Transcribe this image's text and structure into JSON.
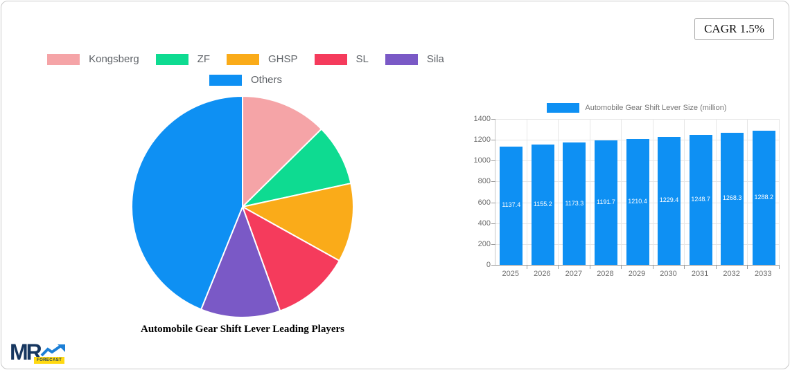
{
  "page": {
    "cagr_label": "CAGR 1.5%"
  },
  "logo": {
    "mr": "MR",
    "forecast_badge": "FORECAST",
    "arrow_color": "#1c7fd6",
    "navy": "#16365f",
    "yellow": "#ffd912"
  },
  "chart_data": [
    {
      "type": "pie",
      "title": "Automobile Gear Shift Lever Leading Players",
      "labels": [
        "Kongsberg",
        "ZF",
        "GHSP",
        "SL",
        "Sila",
        "Others"
      ],
      "values": [
        12.6,
        9.0,
        11.5,
        11.4,
        11.6,
        43.9
      ],
      "colors": [
        "#f5a4a7",
        "#0edb91",
        "#faab19",
        "#f53b5c",
        "#7a59c6",
        "#0e90f3"
      ],
      "start_angle_deg": 0,
      "direction": "clockwise",
      "legend_position": "top",
      "slice_border_color": "#ffffff"
    },
    {
      "type": "bar",
      "legend_label": "Automobile Gear Shift Lever Size (million)",
      "categories": [
        "2025",
        "2026",
        "2027",
        "2028",
        "2029",
        "2030",
        "2031",
        "2032",
        "2033"
      ],
      "values": [
        1137.4,
        1155.2,
        1173.3,
        1191.7,
        1210.4,
        1229.4,
        1248.7,
        1268.3,
        1288.2
      ],
      "bar_color": "#0e90f3",
      "ylim": [
        0,
        1400
      ],
      "ytick_step": 200,
      "grid": true,
      "value_label_color": "#ffffff"
    }
  ]
}
